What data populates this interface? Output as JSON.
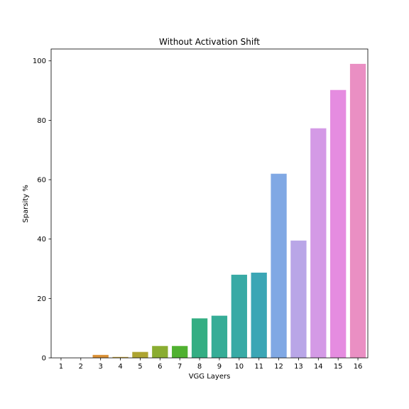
{
  "chart_data": {
    "type": "bar",
    "title": "Without Activation Shift",
    "xlabel": "VGG Layers",
    "ylabel": "Sparsity %",
    "categories": [
      "1",
      "2",
      "3",
      "4",
      "5",
      "6",
      "7",
      "8",
      "9",
      "10",
      "11",
      "12",
      "13",
      "14",
      "15",
      "16"
    ],
    "values": [
      0,
      0,
      1.0,
      0.3,
      2.0,
      4.0,
      4.0,
      13.3,
      14.2,
      28.0,
      28.7,
      62.0,
      39.5,
      77.3,
      90.2,
      99.0
    ],
    "colors": [
      "#f77189",
      "#f67768",
      "#d99035",
      "#c09c32",
      "#ada431",
      "#8aad31",
      "#50b131",
      "#34ae83",
      "#36ad97",
      "#38aaa5",
      "#3ba6b5",
      "#80a8e4",
      "#b9a6e7",
      "#d49ae6",
      "#e58ce0",
      "#ea8fc3"
    ],
    "ylim": [
      0,
      104
    ],
    "yticks": [
      0,
      20,
      40,
      60,
      80,
      100
    ],
    "grid": false,
    "legend": "none"
  }
}
